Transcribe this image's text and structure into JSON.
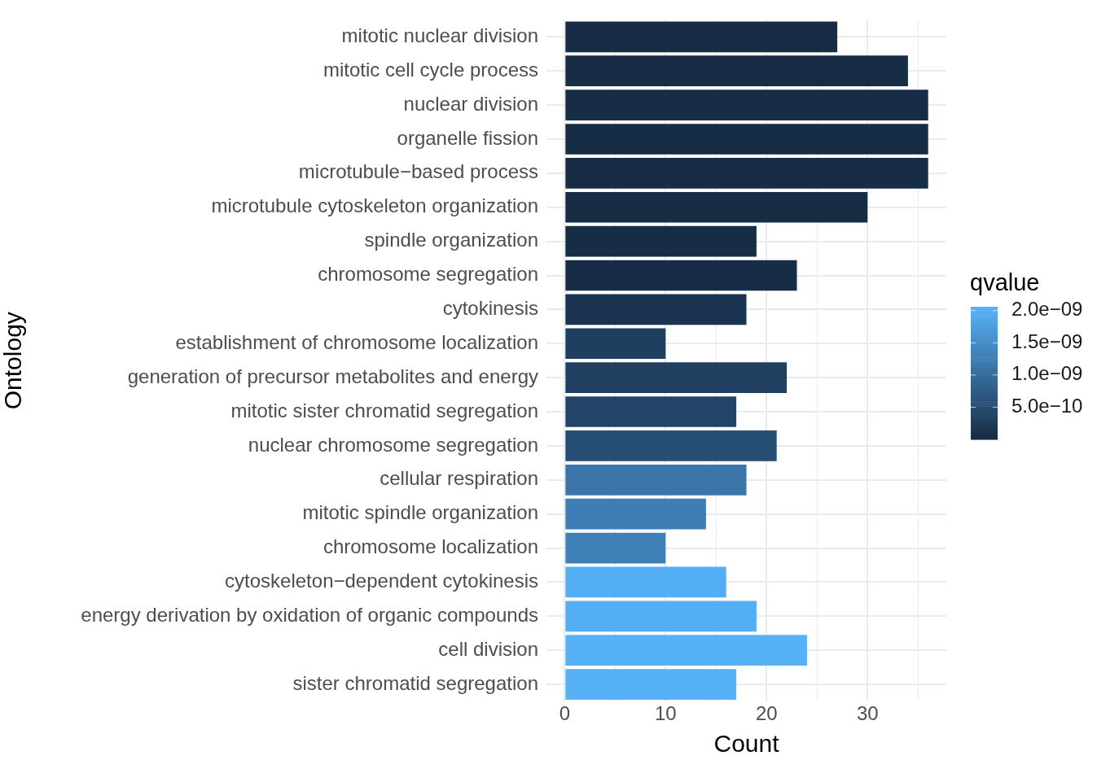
{
  "chart_data": {
    "type": "bar",
    "orientation": "horizontal",
    "xlabel": "Count",
    "ylabel": "Ontology",
    "clabel": "qvalue",
    "categories": [
      "mitotic nuclear division",
      "mitotic cell cycle process",
      "nuclear division",
      "organelle fission",
      "microtubule−based process",
      "microtubule cytoskeleton organization",
      "spindle organization",
      "chromosome segregation",
      "cytokinesis",
      "establishment of chromosome localization",
      "generation of precursor metabolites and energy",
      "mitotic sister chromatid segregation",
      "nuclear chromosome segregation",
      "cellular respiration",
      "mitotic spindle organization",
      "chromosome localization",
      "cytoskeleton−dependent cytokinesis",
      "energy derivation by oxidation of organic compounds",
      "cell division",
      "sister chromatid segregation"
    ],
    "values": [
      27,
      34,
      36,
      36,
      36,
      30,
      19,
      23,
      18,
      10,
      22,
      17,
      21,
      18,
      14,
      10,
      16,
      19,
      24,
      17
    ],
    "colors": [
      "#172c45",
      "#172c45",
      "#172c45",
      "#172c45",
      "#172c45",
      "#172c45",
      "#172c45",
      "#172d47",
      "#1a3350",
      "#1f3f60",
      "#203f61",
      "#224466",
      "#264d72",
      "#3a74a8",
      "#3e7db5",
      "#4080b9",
      "#54aef3",
      "#54aef3",
      "#56b1f7",
      "#56b1f7"
    ],
    "xlim": [
      -1.8,
      37.8
    ],
    "xticks": [
      0,
      {
        "value": 5,
        "label": null
      },
      10,
      {
        "value": 15,
        "label": null
      },
      20,
      {
        "value": 25,
        "label": null
      },
      30,
      {
        "value": 35,
        "label": null
      }
    ],
    "clim": [
      0,
      2.06e-09
    ],
    "cticks": [
      {
        "value": 2e-09,
        "label": "2.0e−09"
      },
      {
        "value": 1.5e-09,
        "label": "1.5e−09"
      },
      {
        "value": 1e-09,
        "label": "1.0e−09"
      },
      {
        "value": 5e-10,
        "label": "5.0e−10"
      }
    ],
    "grid": true
  }
}
